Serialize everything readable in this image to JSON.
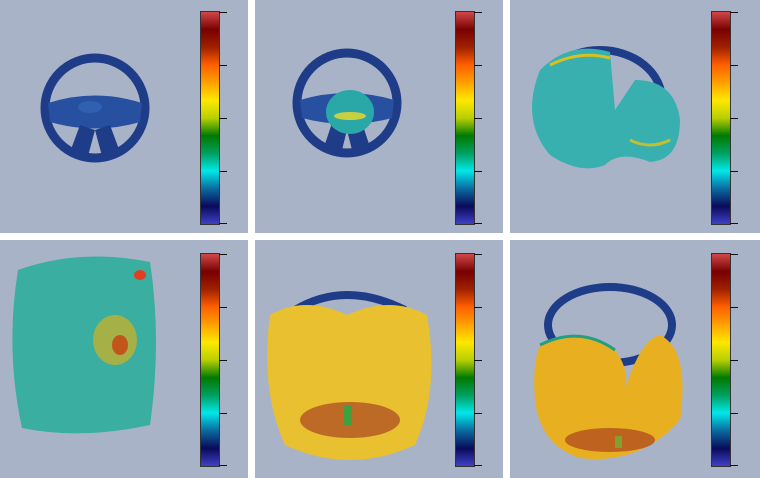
{
  "background_color": "#a9b3c8",
  "colormap": {
    "stops": [
      "#4040c8",
      "#0a0a5a",
      "#0a6aa0",
      "#00e8e8",
      "#00a060",
      "#007a00",
      "#b8d000",
      "#ffe800",
      "#ffa000",
      "#ff6000",
      "#a02000",
      "#780000",
      "#d04848"
    ],
    "ticks": 5
  },
  "panels": [
    {
      "id": "p1",
      "fill_level": 0.0
    },
    {
      "id": "p2",
      "fill_level": 0.2
    },
    {
      "id": "p3",
      "fill_level": 0.5
    },
    {
      "id": "p4",
      "fill_level": 1.0
    },
    {
      "id": "p5",
      "fill_level": 1.0
    },
    {
      "id": "p6",
      "fill_level": 0.8
    }
  ]
}
